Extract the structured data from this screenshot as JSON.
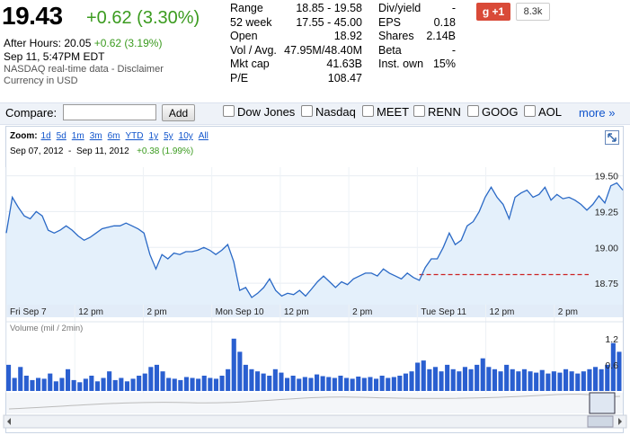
{
  "quote": {
    "price": "19.43",
    "change": "+0.62 (3.30%)",
    "after_hours_label": "After Hours: 20.05",
    "after_hours_change": "+0.62 (3.19%)",
    "timestamp": "Sep 11, 5:47PM EDT",
    "source_note": "NASDAQ real-time data - Disclaimer",
    "currency_note": "Currency in USD"
  },
  "stats_col1": [
    {
      "label": "Range",
      "value": "18.85 - 19.58"
    },
    {
      "label": "52 week",
      "value": "17.55 - 45.00"
    },
    {
      "label": "Open",
      "value": "18.92"
    },
    {
      "label": "Vol / Avg.",
      "value": "47.95M/48.40M"
    },
    {
      "label": "Mkt cap",
      "value": "41.63B"
    },
    {
      "label": "P/E",
      "value": "108.47"
    }
  ],
  "stats_col2": [
    {
      "label": "Div/yield",
      "value": "-"
    },
    {
      "label": "EPS",
      "value": "0.18"
    },
    {
      "label": "Shares",
      "value": "2.14B"
    },
    {
      "label": "Beta",
      "value": "-"
    },
    {
      "label": "Inst. own",
      "value": "15%"
    }
  ],
  "social": {
    "plus_label": "+1",
    "plus_count": "8.3k"
  },
  "compare": {
    "label": "Compare:",
    "input_value": "",
    "add_label": "Add",
    "items": [
      "Dow Jones",
      "Nasdaq",
      "MEET",
      "RENN",
      "GOOG",
      "AOL"
    ],
    "more_label": "more »"
  },
  "chart": {
    "zoom_label": "Zoom:",
    "zoom_options": [
      "1d",
      "5d",
      "1m",
      "3m",
      "6m",
      "YTD",
      "1y",
      "5y",
      "10y",
      "All"
    ],
    "range_from": "Sep 07, 2012",
    "range_to": "Sep 11, 2012",
    "range_change": "+0.38 (1.99%)",
    "volume_label": "Volume (mil / 2min)"
  },
  "chart_data": {
    "type": "line",
    "x_labels": [
      "Fri Sep 7",
      "12 pm",
      "2 pm",
      "Mon Sep 10",
      "12 pm",
      "2 pm",
      "Tue Sep 11",
      "12 pm",
      "2 pm"
    ],
    "y_ticks": [
      "19.50",
      "19.25",
      "19.00",
      "18.75"
    ],
    "ylim": [
      18.6,
      19.56
    ],
    "previous_close": 18.81,
    "series": [
      {
        "values": [
          19.1,
          19.35,
          19.28,
          19.22,
          19.2,
          19.25,
          19.22,
          19.12,
          19.1,
          19.12,
          19.15,
          19.12,
          19.08,
          19.05,
          19.07,
          19.1,
          19.13,
          19.14,
          19.15,
          19.15,
          19.17,
          19.15,
          19.13,
          19.1,
          18.95,
          18.85,
          18.95,
          18.92,
          18.96,
          18.95,
          18.97,
          18.97,
          18.98,
          19.0,
          18.98,
          18.95,
          18.98,
          19.02,
          18.9,
          18.7,
          18.72,
          18.65,
          18.68,
          18.72,
          18.78,
          18.7,
          18.66,
          18.68,
          18.67,
          18.7,
          18.66,
          18.71,
          18.76,
          18.8,
          18.76,
          18.72,
          18.76,
          18.74,
          18.78,
          18.8,
          18.82,
          18.82,
          18.8,
          18.85,
          18.82,
          18.8,
          18.78,
          18.82,
          18.79,
          18.77,
          18.86,
          18.92,
          18.92,
          19.0,
          19.1,
          19.02,
          19.05,
          19.15,
          19.18,
          19.25,
          19.35,
          19.42,
          19.35,
          19.3,
          19.2,
          19.35,
          19.38,
          19.4,
          19.35,
          19.37,
          19.42,
          19.33,
          19.37,
          19.34,
          19.35,
          19.33,
          19.3,
          19.26,
          19.3,
          19.36,
          19.31,
          19.43,
          19.45,
          19.4
        ],
        "volume": [
          0.6,
          0.3,
          0.55,
          0.35,
          0.25,
          0.3,
          0.28,
          0.4,
          0.22,
          0.3,
          0.5,
          0.25,
          0.2,
          0.28,
          0.35,
          0.22,
          0.3,
          0.45,
          0.25,
          0.3,
          0.22,
          0.28,
          0.35,
          0.4,
          0.55,
          0.6,
          0.45,
          0.3,
          0.28,
          0.25,
          0.32,
          0.3,
          0.28,
          0.35,
          0.3,
          0.28,
          0.35,
          0.5,
          1.2,
          0.9,
          0.6,
          0.5,
          0.45,
          0.4,
          0.35,
          0.5,
          0.42,
          0.3,
          0.35,
          0.28,
          0.32,
          0.3,
          0.38,
          0.34,
          0.32,
          0.3,
          0.35,
          0.3,
          0.28,
          0.33,
          0.3,
          0.32,
          0.28,
          0.35,
          0.3,
          0.32,
          0.35,
          0.4,
          0.45,
          0.65,
          0.7,
          0.5,
          0.55,
          0.45,
          0.6,
          0.5,
          0.45,
          0.55,
          0.5,
          0.6,
          0.75,
          0.55,
          0.5,
          0.45,
          0.6,
          0.5,
          0.45,
          0.5,
          0.45,
          0.42,
          0.48,
          0.4,
          0.45,
          0.42,
          0.5,
          0.45,
          0.4,
          0.45,
          0.5,
          0.55,
          0.5,
          0.6,
          1.1,
          0.9
        ]
      }
    ],
    "volume_ticks": [
      "1.2",
      "0.6"
    ],
    "volume_ylim": [
      0,
      1.3
    ]
  }
}
